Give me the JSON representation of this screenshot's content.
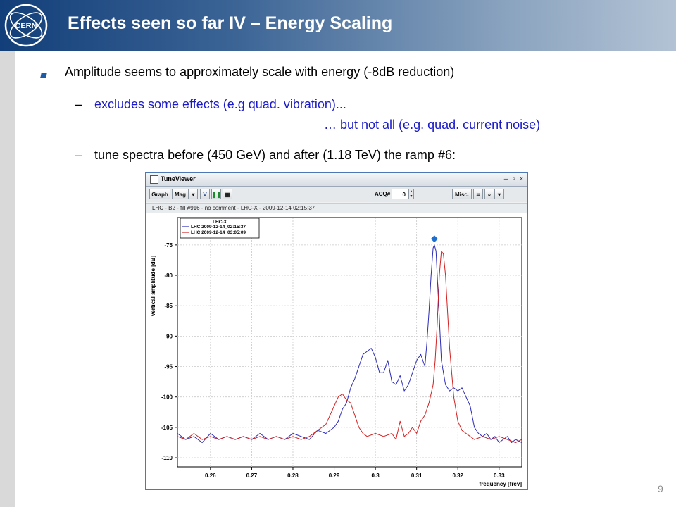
{
  "slide": {
    "title": "Effects seen so far IV – Energy Scaling",
    "logo_text": "CERN",
    "bullet1": "Amplitude seems to approximately scale with energy (-8dB reduction)",
    "sub1_dash": "–",
    "sub1_line1": "excludes some effects (e.g quad. vibration)...",
    "sub1_line2": "… but not all (e.g. quad. current noise)",
    "sub2_dash": "–",
    "sub2": "tune spectra before (450 GeV) and after (1.18 TeV) the ramp #6:",
    "page_number": "9",
    "colors": {
      "header_dark": "#123e79",
      "header_light": "#b3c3d5",
      "sub_blue": "#1a1ac8",
      "bullet": "#1f5aa6"
    }
  },
  "window": {
    "title": "TuneViewer",
    "icons": [
      "window-icon",
      "minimize-icon",
      "maximize-icon",
      "close-icon"
    ],
    "toolbar": {
      "graph_label": "Graph",
      "mag_label": "Mag",
      "v_label": "V",
      "acq_label": "ACQ#",
      "acq_value": "0",
      "misc_label": "Misc."
    },
    "info_line": "LHC - B2 - fill #916 - no comment - LHC-X - 2009-12-14 02:15:37"
  },
  "chart_data": {
    "type": "line",
    "xlabel": "frequency [frev]",
    "ylabel": "vertical amplitude [dB]",
    "xlim": [
      0.252,
      0.3355
    ],
    "ylim": [
      -111.5,
      -70.5
    ],
    "xticks": [
      0.26,
      0.27,
      0.28,
      0.29,
      0.3,
      0.31,
      0.32,
      0.33
    ],
    "xtick_labels": [
      "0.26",
      "0.27",
      "0.28",
      "0.29",
      "0.3",
      "0.31",
      "0.32",
      "0.33"
    ],
    "yticks": [
      -110,
      -105,
      -100,
      -95,
      -90,
      -85,
      -80,
      -75
    ],
    "ytick_labels": [
      "-110",
      "-105",
      "-100",
      "-95",
      "-90",
      "-85",
      "-80",
      "-75"
    ],
    "legend_title": "LHC-X",
    "legend_position": "top-left",
    "grid": true,
    "marker": {
      "x": 0.3143,
      "y": -74.0,
      "color": "#1f6fd1"
    },
    "series": [
      {
        "name": "LHC 2009-12-14_02:15:37",
        "color": "#2b2bb8",
        "x": [
          0.252,
          0.254,
          0.256,
          0.258,
          0.26,
          0.262,
          0.264,
          0.266,
          0.268,
          0.27,
          0.272,
          0.274,
          0.276,
          0.278,
          0.28,
          0.282,
          0.284,
          0.286,
          0.288,
          0.29,
          0.291,
          0.292,
          0.293,
          0.294,
          0.295,
          0.296,
          0.297,
          0.298,
          0.299,
          0.3,
          0.301,
          0.302,
          0.303,
          0.304,
          0.305,
          0.306,
          0.307,
          0.308,
          0.309,
          0.31,
          0.311,
          0.312,
          0.3125,
          0.313,
          0.3135,
          0.314,
          0.3143,
          0.3147,
          0.315,
          0.3155,
          0.316,
          0.317,
          0.318,
          0.319,
          0.32,
          0.321,
          0.322,
          0.323,
          0.324,
          0.325,
          0.326,
          0.327,
          0.328,
          0.329,
          0.33,
          0.331,
          0.332,
          0.333,
          0.334,
          0.3355
        ],
        "y": [
          -106,
          -107,
          -106.5,
          -107.5,
          -106,
          -107,
          -106.5,
          -107,
          -106.5,
          -107,
          -106,
          -107,
          -106.5,
          -107,
          -106,
          -106.5,
          -107,
          -105.5,
          -106,
          -105,
          -104,
          -102,
          -101,
          -98.5,
          -97,
          -95,
          -93,
          -92.5,
          -92,
          -93.5,
          -96,
          -96,
          -94,
          -97.5,
          -98,
          -96.5,
          -99,
          -98,
          -96,
          -94,
          -93,
          -95,
          -91,
          -86,
          -80,
          -75.5,
          -75,
          -76,
          -80,
          -87,
          -94,
          -98,
          -99,
          -98.5,
          -99,
          -98.5,
          -100,
          -101.5,
          -105,
          -106,
          -106.5,
          -106,
          -107,
          -106.5,
          -107.5,
          -107,
          -106.5,
          -107.5,
          -107,
          -107.5
        ]
      },
      {
        "name": "LHC 2009-12-14_03:05:09",
        "color": "#d32020",
        "x": [
          0.252,
          0.254,
          0.256,
          0.258,
          0.26,
          0.262,
          0.264,
          0.266,
          0.268,
          0.27,
          0.272,
          0.274,
          0.276,
          0.278,
          0.28,
          0.282,
          0.284,
          0.286,
          0.288,
          0.289,
          0.29,
          0.291,
          0.292,
          0.293,
          0.294,
          0.295,
          0.296,
          0.297,
          0.298,
          0.3,
          0.302,
          0.304,
          0.305,
          0.306,
          0.307,
          0.308,
          0.309,
          0.31,
          0.311,
          0.312,
          0.313,
          0.314,
          0.3145,
          0.315,
          0.3155,
          0.316,
          0.3165,
          0.317,
          0.318,
          0.319,
          0.32,
          0.321,
          0.322,
          0.323,
          0.324,
          0.326,
          0.328,
          0.33,
          0.332,
          0.334,
          0.3355
        ],
        "y": [
          -106.5,
          -107,
          -106,
          -107,
          -106.5,
          -107,
          -106.5,
          -107,
          -106.5,
          -107,
          -106.5,
          -107,
          -106.5,
          -107,
          -106.5,
          -107,
          -106.5,
          -105.5,
          -104.5,
          -103,
          -101.5,
          -100,
          -99.5,
          -100.5,
          -101,
          -103,
          -105,
          -106,
          -106.5,
          -106,
          -106.5,
          -106,
          -107,
          -104,
          -106.5,
          -106,
          -105,
          -106,
          -104,
          -103,
          -101,
          -98,
          -94,
          -88,
          -80,
          -76,
          -76.5,
          -80,
          -92,
          -100,
          -104,
          -105.5,
          -106,
          -106.5,
          -107,
          -106.5,
          -107,
          -106.5,
          -107,
          -107.5,
          -107
        ]
      }
    ]
  }
}
